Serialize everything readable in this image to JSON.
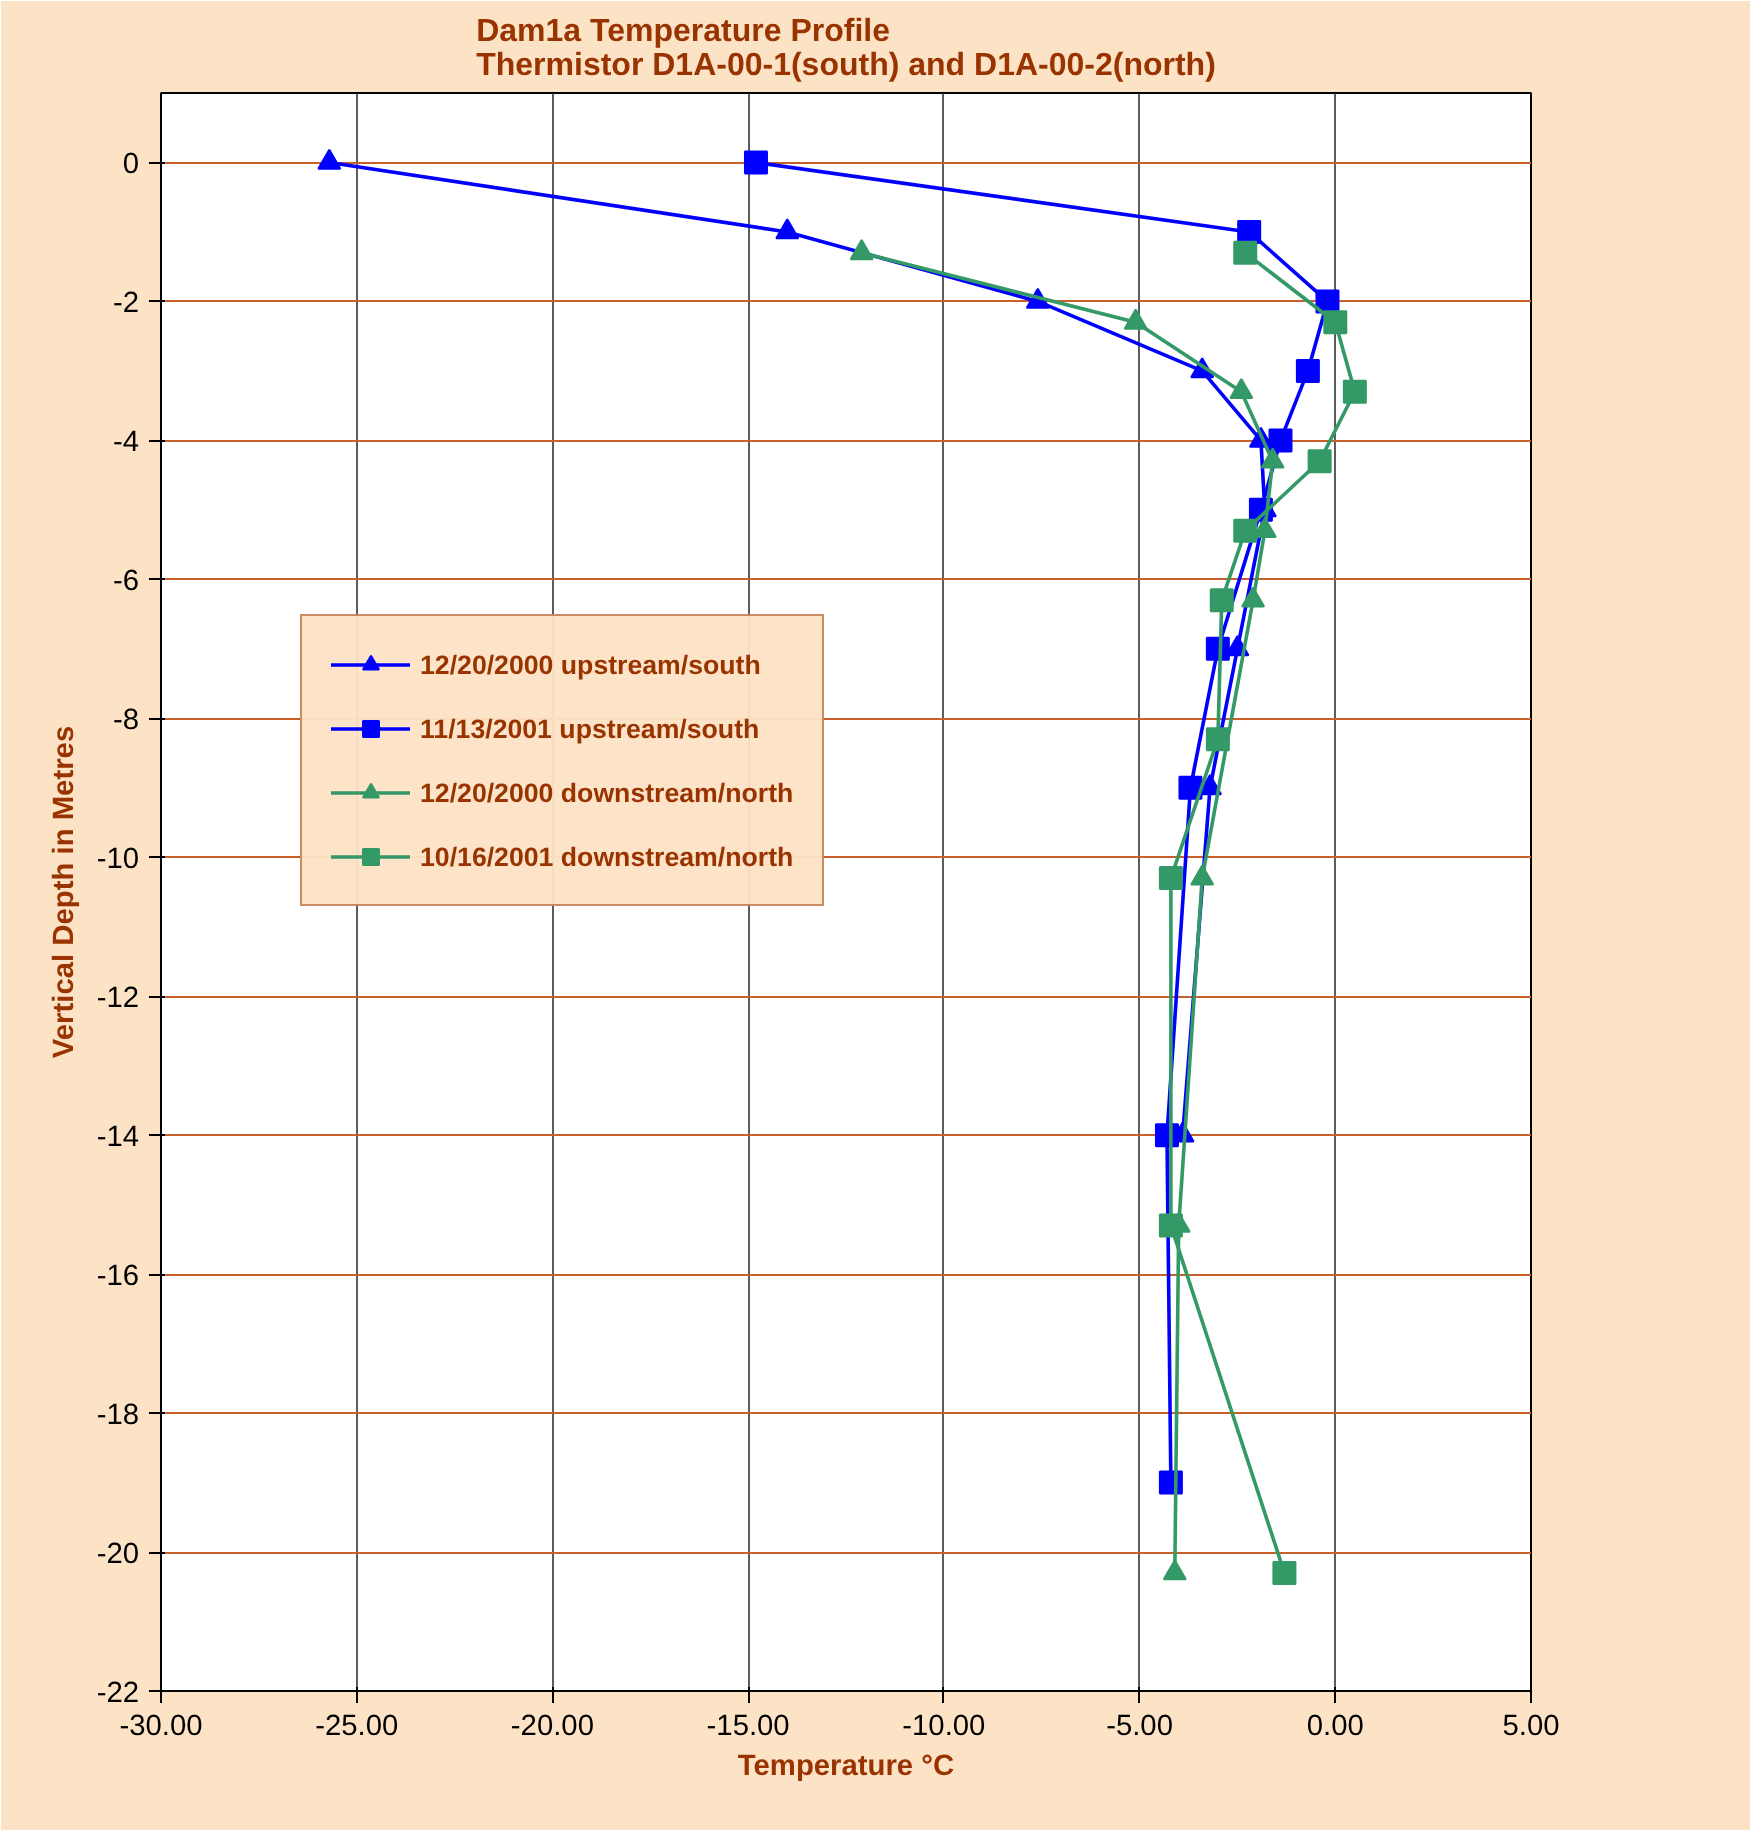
{
  "chart_data": {
    "type": "line",
    "title": "Dam1a Temperature Profile\nThermistor D1A-00-1(south) and D1A-00-2(north)",
    "xlabel": "Temperature °C",
    "ylabel": "Vertical Depth in Metres",
    "xlim": [
      -30,
      5
    ],
    "ylim": [
      -22,
      1
    ],
    "xticks": [
      {
        "value": -30,
        "label": "-30.00"
      },
      {
        "value": -25,
        "label": "-25.00"
      },
      {
        "value": -20,
        "label": "-20.00"
      },
      {
        "value": -15,
        "label": "-15.00"
      },
      {
        "value": -10,
        "label": "-10.00"
      },
      {
        "value": -5,
        "label": "-5.00"
      },
      {
        "value": 0,
        "label": "0.00"
      },
      {
        "value": 5,
        "label": "5.00"
      }
    ],
    "yticks": [
      0,
      -2,
      -4,
      -6,
      -8,
      -10,
      -12,
      -14,
      -16,
      -18,
      -20,
      -22
    ],
    "grid": true,
    "legend": "center left",
    "line_style": "solid",
    "series": [
      {
        "name": "12/20/2000 upstream/south",
        "color": "#0000ff",
        "marker": "triangle",
        "x": [
          -25.7,
          -14.0,
          -7.6,
          -3.4,
          -1.9,
          -1.8,
          -2.5,
          -3.2,
          -3.9
        ],
        "values": [
          0,
          -1,
          -2,
          -3,
          -4,
          -5,
          -7,
          -9,
          -14
        ]
      },
      {
        "name": "11/13/2001 upstream/south",
        "color": "#0000ff",
        "marker": "square",
        "x": [
          -14.8,
          -2.2,
          -0.2,
          -0.7,
          -1.4,
          -1.9,
          -3.0,
          -3.7,
          -4.3,
          -4.2
        ],
        "values": [
          0,
          -1,
          -2,
          -3,
          -4,
          -5,
          -7,
          -9,
          -14,
          -19
        ]
      },
      {
        "name": "12/20/2000 downstream/north",
        "color": "#339966",
        "marker": "triangle",
        "x": [
          -12.1,
          -5.1,
          -2.4,
          -1.6,
          -1.8,
          -2.1,
          -3.4,
          -4.0,
          -4.1
        ],
        "values": [
          -1.3,
          -2.3,
          -3.3,
          -4.3,
          -5.3,
          -6.3,
          -10.3,
          -15.3,
          -20.3
        ]
      },
      {
        "name": "10/16/2001 downstream/north",
        "color": "#339966",
        "marker": "square",
        "x": [
          -2.3,
          0.0,
          0.5,
          -0.4,
          -2.3,
          -2.9,
          -3.0,
          -4.2,
          -4.2,
          -1.3
        ],
        "values": [
          -1.3,
          -2.3,
          -3.3,
          -4.3,
          -5.3,
          -6.3,
          -8.3,
          -10.3,
          -15.3,
          -20.3
        ]
      }
    ]
  }
}
